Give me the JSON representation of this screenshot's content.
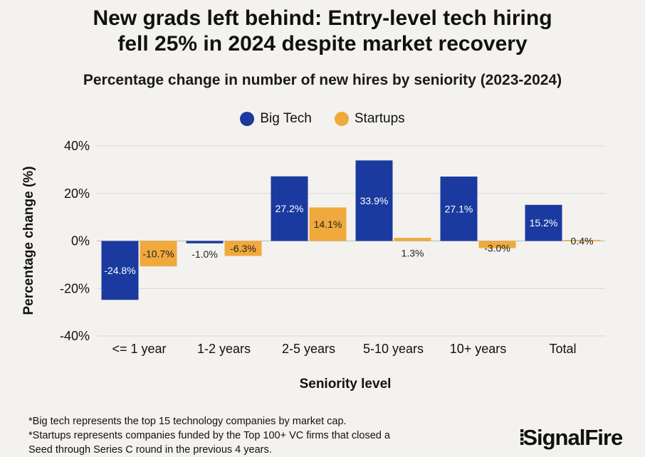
{
  "title_lines": [
    "New grads left behind: Entry-level tech hiring",
    "fell 25% in 2024 despite market recovery"
  ],
  "subtitle": "Percentage change in number of new hires by seniority (2023-2024)",
  "colors": {
    "big_tech": "#1a3aa0",
    "startups": "#f0a93c",
    "background": "#f4f2ee"
  },
  "chart_data": {
    "type": "bar",
    "title": "Percentage change in number of new hires by seniority (2023-2024)",
    "xlabel": "Seniority level",
    "ylabel": "Percentage change (%)",
    "ylim": [
      -40,
      40
    ],
    "yticks": [
      40,
      20,
      0,
      -20,
      -40
    ],
    "ytick_labels": [
      "40%",
      "20%",
      "0%",
      "-20%",
      "-40%"
    ],
    "grid": true,
    "legend_position": "top-center",
    "categories": [
      "<= 1 year",
      "1-2 years",
      "2-5 years",
      "5-10 years",
      "10+ years",
      "Total"
    ],
    "series": [
      {
        "name": "Big Tech",
        "values": [
          -24.8,
          -1.0,
          27.2,
          33.9,
          27.1,
          15.2
        ],
        "labels": [
          "-24.8%",
          "-1.0%",
          "27.2%",
          "33.9%",
          "27.1%",
          "15.2%"
        ]
      },
      {
        "name": "Startups",
        "values": [
          -10.7,
          -6.3,
          14.1,
          1.3,
          -3.0,
          0.4
        ],
        "labels": [
          "-10.7%",
          "-6.3%",
          "14.1%",
          "1.3%",
          "-3.0%",
          "0.4%"
        ]
      }
    ]
  },
  "footnotes": [
    "*Big tech represents the top 15 technology companies by market cap.",
    "*Startups represents companies funded by the Top 100+ VC firms that closed a",
    "Seed through Series C round in the previous 4 years."
  ],
  "logo": "SignalFire"
}
